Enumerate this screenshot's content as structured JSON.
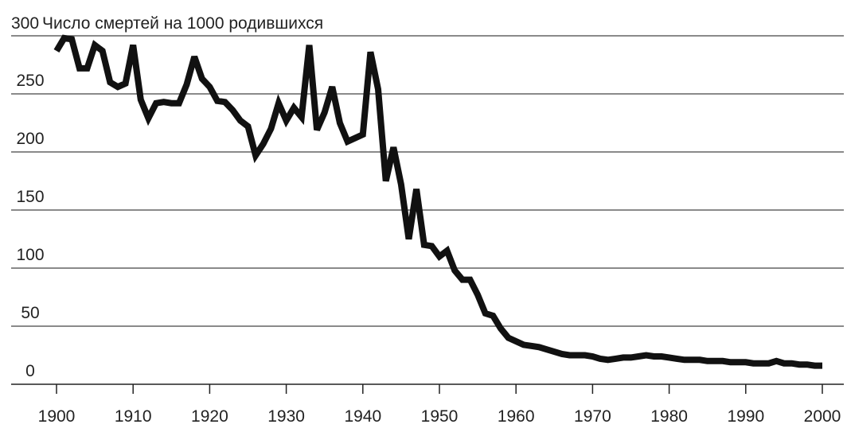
{
  "chart_data": {
    "type": "line",
    "title": "Число смертей на 1000 родившихся",
    "xlabel": "",
    "ylabel": "",
    "xlim": [
      1900,
      2000
    ],
    "ylim": [
      0,
      300
    ],
    "x_ticks": [
      1900,
      1910,
      1920,
      1930,
      1940,
      1950,
      1960,
      1970,
      1980,
      1990,
      2000
    ],
    "y_ticks": [
      0,
      50,
      100,
      150,
      200,
      250,
      300
    ],
    "grid": "horizontal",
    "legend": "none",
    "line_color": "#111111",
    "series": [
      {
        "x": [
          1900,
          1901,
          1902,
          1903,
          1904,
          1905,
          1906,
          1907,
          1908,
          1909,
          1910,
          1911,
          1912,
          1913,
          1914,
          1915,
          1916,
          1917,
          1918,
          1919,
          1920,
          1921,
          1922,
          1923,
          1924,
          1925,
          1926,
          1927,
          1928,
          1929,
          1930,
          1931,
          1932,
          1933,
          1934,
          1935,
          1936,
          1937,
          1938,
          1939,
          1940,
          1941,
          1942,
          1943,
          1944,
          1945,
          1946,
          1947,
          1948,
          1949,
          1950,
          1951,
          1952,
          1953,
          1954,
          1955,
          1956,
          1957,
          1958,
          1959,
          1960,
          1961,
          1962,
          1963,
          1964,
          1965,
          1966,
          1967,
          1968,
          1969,
          1970,
          1971,
          1972,
          1973,
          1974,
          1975,
          1976,
          1977,
          1978,
          1979,
          1980,
          1981,
          1982,
          1983,
          1984,
          1985,
          1986,
          1987,
          1988,
          1989,
          1990,
          1991,
          1992,
          1993,
          1994,
          1995,
          1996,
          1997,
          1998,
          1999,
          2000
        ],
        "values": [
          287,
          298,
          297,
          272,
          272,
          292,
          287,
          260,
          256,
          259,
          292,
          245,
          229,
          242,
          243,
          242,
          242,
          258,
          282,
          263,
          256,
          244,
          243,
          236,
          227,
          222,
          197,
          207,
          220,
          242,
          227,
          238,
          230,
          292,
          219,
          234,
          256,
          225,
          209,
          212,
          215,
          286,
          254,
          175,
          204,
          172,
          125,
          168,
          120,
          119,
          110,
          115,
          98,
          90,
          90,
          77,
          61,
          59,
          48,
          40,
          37,
          34,
          33,
          32,
          30,
          28,
          26,
          25,
          25,
          25,
          24,
          22,
          21,
          22,
          23,
          23,
          24,
          25,
          24,
          24,
          23,
          22,
          21,
          21,
          21,
          20,
          20,
          20,
          19,
          19,
          19,
          18,
          18,
          18,
          20,
          18,
          18,
          17,
          17,
          16,
          16
        ]
      }
    ]
  }
}
